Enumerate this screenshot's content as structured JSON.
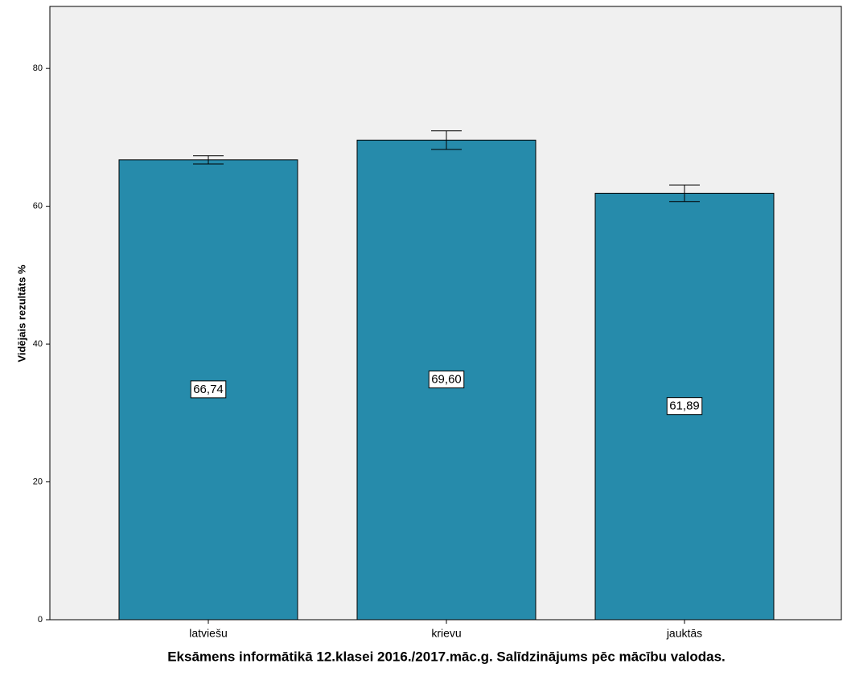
{
  "chart_data": {
    "type": "bar",
    "title": "Eksāmens informātikā 12.klasei 2016./2017.māc.g. Salīdzinājums pēc mācību valodas.",
    "ylabel": "Vidējais rezultāts %",
    "categories": [
      "latviešu",
      "krievu",
      "jauktās"
    ],
    "values": [
      66.74,
      69.6,
      61.89
    ],
    "value_labels": [
      "66,74",
      "69,60",
      "61,89"
    ],
    "errors": [
      0.6,
      1.35,
      1.2
    ],
    "color": "#268bab",
    "ylim": [
      0,
      89
    ],
    "yticks": [
      0,
      20,
      40,
      60,
      80
    ],
    "grid": false
  }
}
